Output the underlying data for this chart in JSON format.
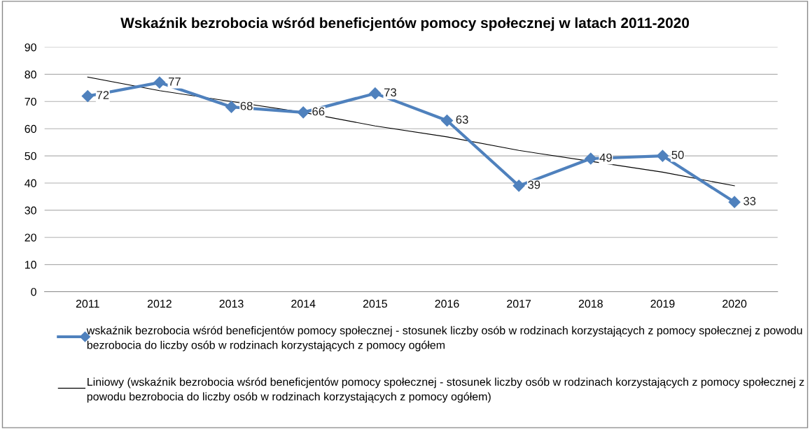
{
  "chart_data": {
    "type": "line",
    "title": "Wskaźnik bezrobocia wśród beneficjentów pomocy społecznej w latach 2011-2020",
    "categories": [
      "2011",
      "2012",
      "2013",
      "2014",
      "2015",
      "2016",
      "2017",
      "2018",
      "2019",
      "2020"
    ],
    "series": [
      {
        "name": "wskaźnik bezrobocia wśród beneficjentów pomocy społecznej - stosunek liczby osób w rodzinach korzystających z pomocy społecznej z powodu bezrobocia do liczby osób w rodzinach korzystających z pomocy ogółem",
        "color": "#4f81bd",
        "values": [
          72,
          77,
          68,
          66,
          73,
          63,
          39,
          49,
          50,
          33
        ],
        "value_labels": [
          "72",
          "77",
          "68",
          "66",
          "73",
          "63",
          "39",
          "49",
          "50",
          "33"
        ],
        "marker": "diamond",
        "line_style": "solid"
      },
      {
        "name": "Liniowy (wskaźnik bezrobocia wśród beneficjentów pomocy społecznej - stosunek liczby osób w rodzinach korzystających z pomocy społecznej z powodu bezrobocia do liczby osób w rodzinach korzystających z pomocy ogółem)",
        "color": "#000000",
        "values": [
          79,
          74,
          70,
          66,
          61,
          57,
          52,
          48,
          44,
          39
        ],
        "marker": "none",
        "line_style": "solid"
      }
    ],
    "ylim": [
      0,
      90
    ],
    "yticks": [
      0,
      10,
      20,
      30,
      40,
      50,
      60,
      70,
      80,
      90
    ],
    "grid": "y",
    "legend": "bottom"
  }
}
